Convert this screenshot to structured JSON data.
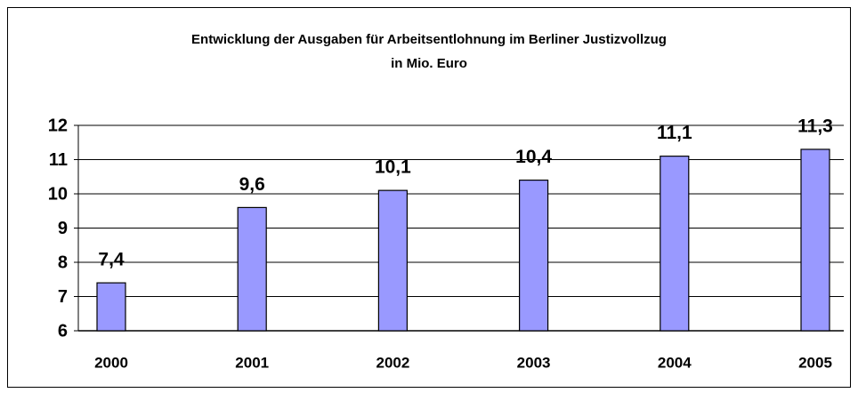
{
  "chart_data": {
    "type": "bar",
    "title": "Entwicklung der Ausgaben für Arbeitsentlohnung im Berliner Justizvollzug",
    "subtitle": "in Mio. Euro",
    "categories": [
      "2000",
      "2001",
      "2002",
      "2003",
      "2004",
      "2005"
    ],
    "values": [
      7.4,
      9.6,
      10.1,
      10.4,
      11.1,
      11.3
    ],
    "value_labels": [
      "7,4",
      "9,6",
      "10,1",
      "10,4",
      "11,1",
      "11,3"
    ],
    "color": "#9999ff",
    "ylim": [
      6,
      12
    ],
    "yticks": [
      6,
      7,
      8,
      9,
      10,
      11,
      12
    ],
    "grid": true
  }
}
